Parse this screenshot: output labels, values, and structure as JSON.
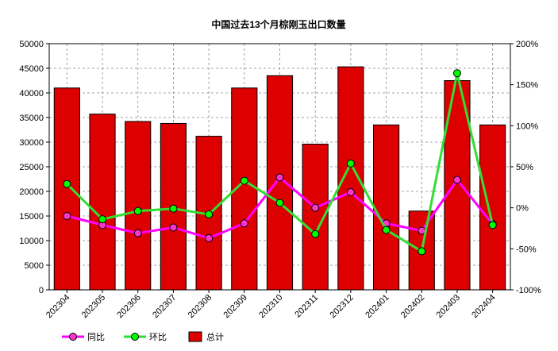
{
  "chart_data": {
    "type": "bar",
    "title": "中国过去13个月棕刚玉出口数量",
    "categories": [
      "202304",
      "202305",
      "202306",
      "202307",
      "202308",
      "202309",
      "202310",
      "202311",
      "202312",
      "202401",
      "202402",
      "202403",
      "202404"
    ],
    "y_left": {
      "min": 0,
      "max": 50000,
      "ticks": [
        "0",
        "5000",
        "10000",
        "15000",
        "20000",
        "25000",
        "30000",
        "35000",
        "40000",
        "45000",
        "50000"
      ]
    },
    "y_right": {
      "min": -100,
      "max": 200,
      "ticks": [
        "-100%",
        "-50%",
        "0%",
        "50%",
        "100%",
        "150%",
        "200%"
      ]
    },
    "grid": true,
    "legend_position": "bottom-left",
    "series": [
      {
        "name": "同比",
        "type": "line",
        "axis": "right",
        "color": "#ff00ff",
        "marker_color": "#ff33cc",
        "values": [
          -10,
          -21,
          -31,
          -24,
          -37,
          -19,
          37,
          0,
          19,
          -19,
          -28,
          34,
          -20
        ]
      },
      {
        "name": "环比",
        "type": "line",
        "axis": "right",
        "color": "#33dd33",
        "marker_color": "#00ff00",
        "values": [
          29,
          -14,
          -4,
          -1,
          -8,
          33,
          6,
          -32,
          54,
          -27,
          -53,
          164,
          -21
        ]
      },
      {
        "name": "总计",
        "type": "bar",
        "axis": "left",
        "color": "#dd0000",
        "values": [
          41000,
          35700,
          34200,
          33800,
          31200,
          41000,
          43500,
          29600,
          45300,
          33500,
          16000,
          42500,
          33500
        ]
      }
    ]
  }
}
